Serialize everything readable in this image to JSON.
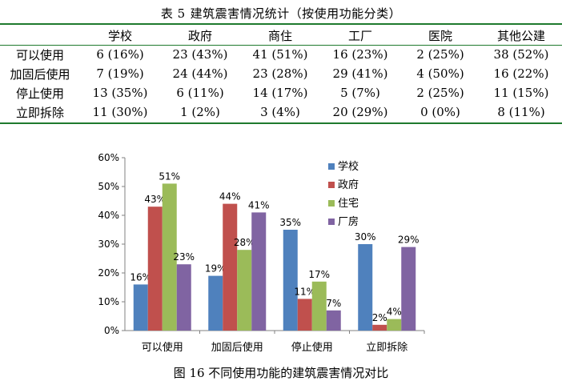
{
  "table": {
    "number": "表 5",
    "title": "建筑震害情况统计（按使用功能分类）",
    "columns": [
      "学校",
      "政府",
      "商住",
      "工厂",
      "医院",
      "其他公建"
    ],
    "rows": [
      {
        "label": "可以使用",
        "cells": [
          "6 (16%)",
          "23 (43%)",
          "41 (51%)",
          "16 (23%)",
          "2 (25%)",
          "38 (52%)"
        ]
      },
      {
        "label": "加固后使用",
        "cells": [
          "7 (19%)",
          "24 (44%)",
          "23 (28%)",
          "29 (41%)",
          "4 (50%)",
          "16 (22%)"
        ]
      },
      {
        "label": "停止使用",
        "cells": [
          "13 (35%)",
          "6 (11%)",
          "14 (17%)",
          "5 (7%)",
          "2 (25%)",
          "11 (15%)"
        ]
      },
      {
        "label": "立即拆除",
        "cells": [
          "11 (30%)",
          "1 (2%)",
          "3 (4%)",
          "20 (29%)",
          "0 (0%)",
          "8 (11%)"
        ]
      }
    ],
    "rule_color": "#1f7a2e"
  },
  "chart_data": {
    "type": "bar",
    "categories": [
      "可以使用",
      "加固后使用",
      "停止使用",
      "立即拆除"
    ],
    "series": [
      {
        "name": "学校",
        "values": [
          16,
          19,
          35,
          30
        ],
        "color": "#4f81bd"
      },
      {
        "name": "政府",
        "values": [
          43,
          44,
          11,
          2
        ],
        "color": "#c0504d"
      },
      {
        "name": "住宅",
        "values": [
          51,
          28,
          17,
          4
        ],
        "color": "#9bbb59"
      },
      {
        "name": "厂房",
        "values": [
          23,
          41,
          7,
          29
        ],
        "color": "#8064a2"
      }
    ],
    "ylim": [
      0,
      60
    ],
    "yticks": [
      "0%",
      "10%",
      "20%",
      "30%",
      "40%",
      "50%",
      "60%"
    ],
    "data_labels": [
      [
        "16%",
        "19%",
        "35%",
        "30%"
      ],
      [
        "43%",
        "44%",
        "11%",
        "2%"
      ],
      [
        "51%",
        "28%",
        "17%",
        "4%"
      ],
      [
        "23%",
        "41%",
        "7%",
        "29%"
      ]
    ],
    "legend_position": "right",
    "grid": false
  },
  "caption": "图 16  不同使用功能的建筑震害情况对比"
}
